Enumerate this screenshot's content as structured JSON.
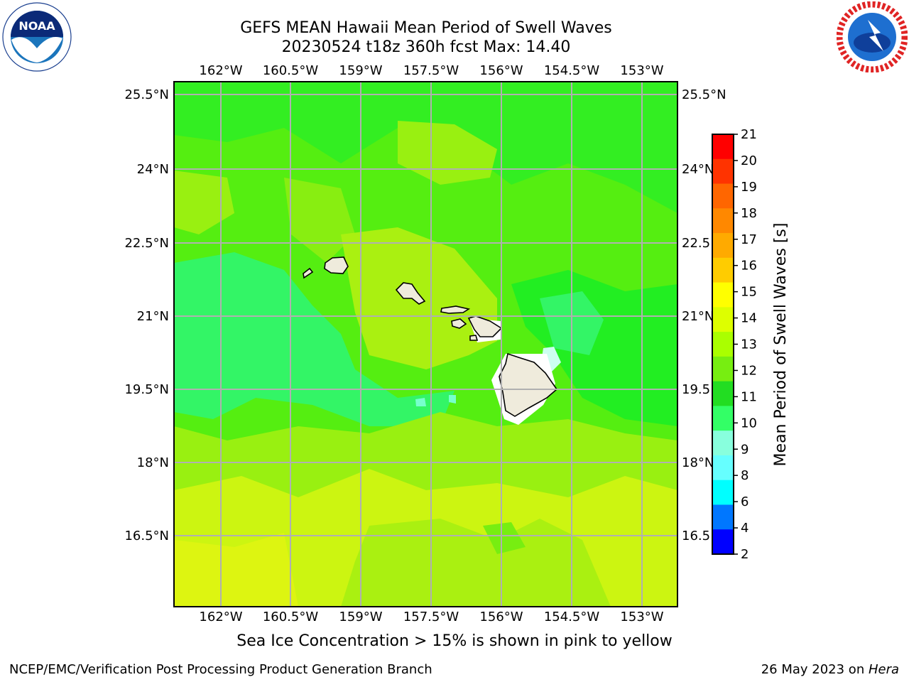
{
  "title": {
    "line1": "GEFS MEAN Hawaii Mean Period of Swell Waves",
    "line2": "20230524 t18z 360h fcst   Max: 14.40"
  },
  "logos": {
    "noaa": {
      "text": "NOAA",
      "ring_text": "NATIONAL OCEANIC AND ATMOSPHERIC ADMINISTRATION · U.S. DEPARTMENT OF COMMERCE"
    },
    "nws": {
      "ring_text": "NATIONAL WEATHER SERVICE"
    }
  },
  "map": {
    "lon_ticks": [
      "162°W",
      "160.5°W",
      "159°W",
      "157.5°W",
      "156°W",
      "154.5°W",
      "153°W"
    ],
    "lat_ticks": [
      "25.5°N",
      "24°N",
      "22.5°N",
      "21°N",
      "19.5°N",
      "18°N",
      "16.5°N"
    ],
    "lat_ticks_right": [
      "25.5°N",
      "24°N",
      "22.5",
      "21°N",
      "19.5",
      "18°N",
      "16.5"
    ],
    "land_color": "#efebdc",
    "grid_color": "#b0b0b0",
    "field_colors": {
      "bright_green": "#22ee22",
      "green": "#55ee11",
      "yellow_green": "#99f011",
      "light_green": "#77ee11",
      "yellow": "#ccf511",
      "aqua_green": "#33f566",
      "aqua": "#77ffcc"
    }
  },
  "colorbar": {
    "label": "Mean Period of Swell Waves [s]",
    "ticks": [
      "21",
      "20",
      "19",
      "18",
      "17",
      "16",
      "15",
      "14",
      "13",
      "12",
      "11",
      "10",
      "9",
      "8",
      "6",
      "4",
      "2"
    ],
    "colors": [
      "#ff0000",
      "#ff3300",
      "#ff6600",
      "#ff8800",
      "#ffaa00",
      "#ffcc00",
      "#ffff00",
      "#ddff00",
      "#aaff00",
      "#77ee11",
      "#22dd22",
      "#33ff66",
      "#88ffdd",
      "#66ffff",
      "#00ffff",
      "#0077ff",
      "#0000ff"
    ]
  },
  "sea_ice_note": "Sea Ice Concentration > 15% is shown in pink to yellow",
  "footer": {
    "left": "NCEP/EMC/Verification Post Processing Product Generation Branch",
    "right_date": "26 May 2023 on ",
    "right_host": "Hera"
  }
}
